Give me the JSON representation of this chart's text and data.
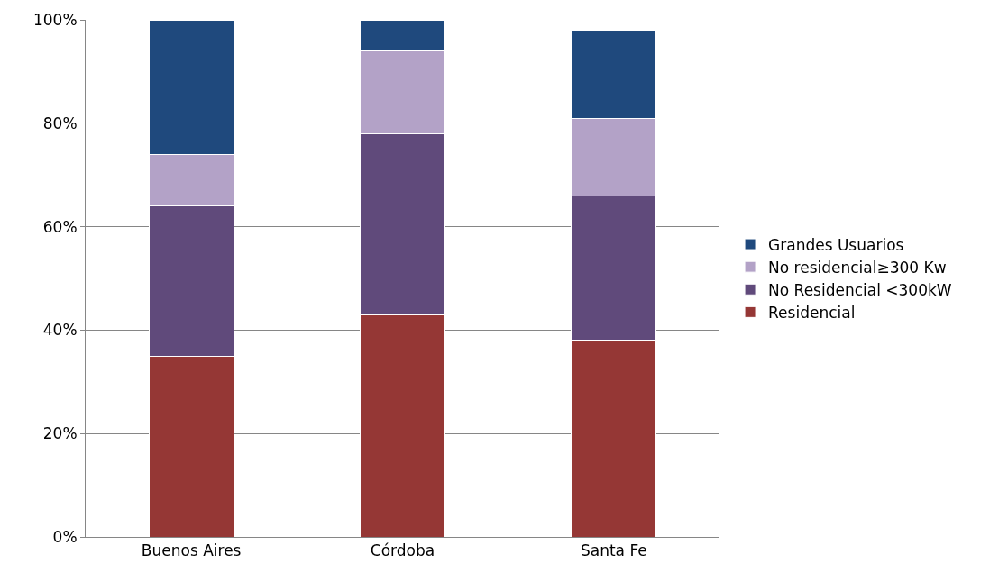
{
  "chart_data": {
    "type": "bar",
    "stacked": true,
    "categories": [
      "Buenos Aires",
      "Córdoba",
      "Santa Fe"
    ],
    "series": [
      {
        "name": "Residencial",
        "color": "#953735",
        "values": [
          35,
          43,
          38
        ]
      },
      {
        "name": "No Residencial <300kW",
        "color": "#604a7b",
        "values": [
          29,
          35,
          28
        ]
      },
      {
        "name": "No residencial≥300 Kw",
        "color": "#b3a2c7",
        "values": [
          10,
          16,
          15
        ]
      },
      {
        "name": "Grandes Usuarios",
        "color": "#1f497d",
        "values": [
          26,
          6,
          17
        ]
      }
    ],
    "ylim": [
      0,
      100
    ],
    "yticks": [
      {
        "value": 0,
        "label": "0%"
      },
      {
        "value": 20,
        "label": "20%"
      },
      {
        "value": 40,
        "label": "40%"
      },
      {
        "value": 60,
        "label": "60%"
      },
      {
        "value": 80,
        "label": "80%"
      },
      {
        "value": 100,
        "label": "100%"
      }
    ],
    "grid": "y",
    "legend": "right"
  }
}
